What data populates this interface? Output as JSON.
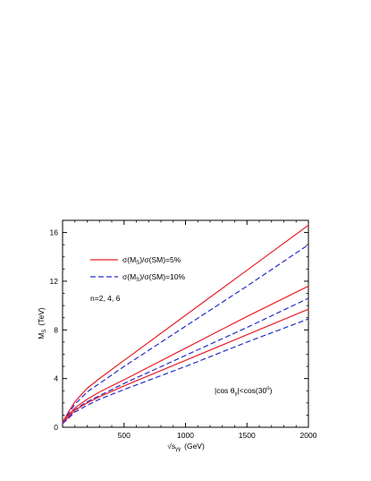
{
  "chart_data": {
    "type": "line",
    "x_label": "√s",
    "x_label_sub": "γγ",
    "x_label_unit": "(GeV)",
    "y_label": "M",
    "y_label_sub": "S",
    "y_label_unit": "(TeV)",
    "xlim": [
      0,
      2000
    ],
    "ylim": [
      0,
      17
    ],
    "x_ticks": [
      500,
      1000,
      1500,
      2000
    ],
    "y_ticks": [
      0,
      4,
      8,
      12,
      16
    ],
    "grid": false,
    "legend": [
      {
        "text_prefix": "σ(M",
        "text_sub": "S",
        "text_suffix": ")/σ(SM)=5%",
        "color": "#e8202a",
        "dash": "solid"
      },
      {
        "text_prefix": "σ(M",
        "text_sub": "S",
        "text_suffix": ")/σ(SM)=10%",
        "color": "#2630c8",
        "dash": "dashed"
      }
    ],
    "annotations": {
      "n_values": "n=2, 4, 6",
      "cut_prefix": "|cos θ",
      "cut_sub": "γ",
      "cut_suffix": "|<cos(30",
      "cut_sup": "o",
      "cut_close": ")"
    },
    "series": [
      {
        "color": "#e8202a",
        "style": "solid",
        "x": [
          0,
          50,
          100,
          200,
          300,
          500,
          1000,
          1500,
          2000
        ],
        "y": [
          0.4,
          1.3,
          2.1,
          3.2,
          4.0,
          5.5,
          9.2,
          12.9,
          16.6
        ]
      },
      {
        "color": "#2630c8",
        "style": "dashed",
        "x": [
          0,
          50,
          100,
          200,
          300,
          500,
          1000,
          1500,
          2000
        ],
        "y": [
          0.35,
          1.15,
          1.9,
          2.9,
          3.6,
          5.0,
          8.3,
          11.6,
          15.0
        ]
      },
      {
        "color": "#e8202a",
        "style": "solid",
        "x": [
          0,
          50,
          100,
          200,
          300,
          500,
          1000,
          1500,
          2000
        ],
        "y": [
          0.4,
          1.0,
          1.6,
          2.3,
          2.9,
          3.9,
          6.5,
          9.1,
          11.6
        ]
      },
      {
        "color": "#2630c8",
        "style": "dashed",
        "x": [
          0,
          50,
          100,
          200,
          300,
          500,
          1000,
          1500,
          2000
        ],
        "y": [
          0.35,
          0.9,
          1.45,
          2.1,
          2.6,
          3.6,
          5.9,
          8.2,
          10.6
        ]
      },
      {
        "color": "#e8202a",
        "style": "solid",
        "x": [
          0,
          50,
          100,
          200,
          300,
          500,
          1000,
          1500,
          2000
        ],
        "y": [
          0.35,
          0.85,
          1.4,
          2.0,
          2.5,
          3.4,
          5.5,
          7.6,
          9.7
        ]
      },
      {
        "color": "#2630c8",
        "style": "dashed",
        "x": [
          0,
          50,
          100,
          200,
          300,
          500,
          1000,
          1500,
          2000
        ],
        "y": [
          0.3,
          0.75,
          1.25,
          1.8,
          2.3,
          3.1,
          5.0,
          7.0,
          8.9
        ]
      }
    ]
  }
}
